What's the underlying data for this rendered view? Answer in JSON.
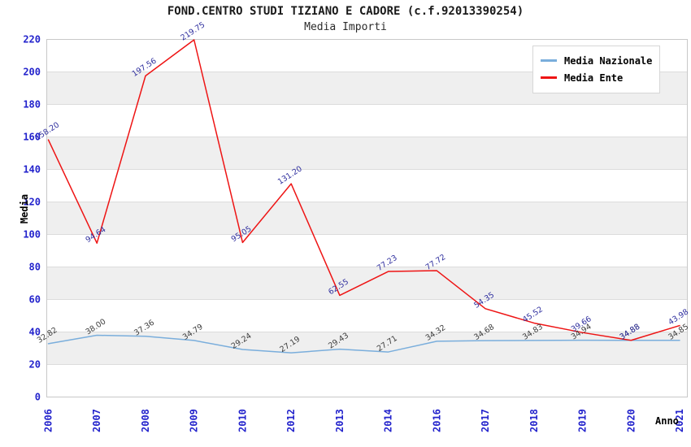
{
  "chart_data": {
    "type": "line",
    "title": "FOND.CENTRO STUDI TIZIANO E CADORE (c.f.92013390254)",
    "subtitle": "Media Importi",
    "xlabel": "Anno",
    "ylabel": "Media",
    "categories": [
      "2006",
      "2007",
      "2008",
      "2009",
      "2010",
      "2012",
      "2013",
      "2014",
      "2016",
      "2017",
      "2018",
      "2019",
      "2020",
      "2021"
    ],
    "series": [
      {
        "name": "Media Nazionale",
        "color": "#7aaedc",
        "label_color": "#3c3c3c",
        "values": [
          32.82,
          38.0,
          37.36,
          34.79,
          29.24,
          27.19,
          29.43,
          27.71,
          34.32,
          34.68,
          34.83,
          34.94,
          34.88,
          34.85
        ]
      },
      {
        "name": "Media Ente",
        "color": "#ee1414",
        "label_color": "#2e2e9e",
        "values": [
          158.2,
          94.64,
          197.56,
          219.75,
          95.05,
          131.2,
          62.55,
          77.23,
          77.72,
          54.35,
          45.52,
          39.66,
          34.88,
          43.98
        ]
      }
    ],
    "ylim": [
      0,
      220
    ],
    "ytick_step": 20,
    "grid": true,
    "band_color": "#efefef",
    "grid_color": "#dcdcdc",
    "border_color": "#c8c8c8",
    "tick_label_color": "#2323cc",
    "legend_position": "top-right"
  }
}
